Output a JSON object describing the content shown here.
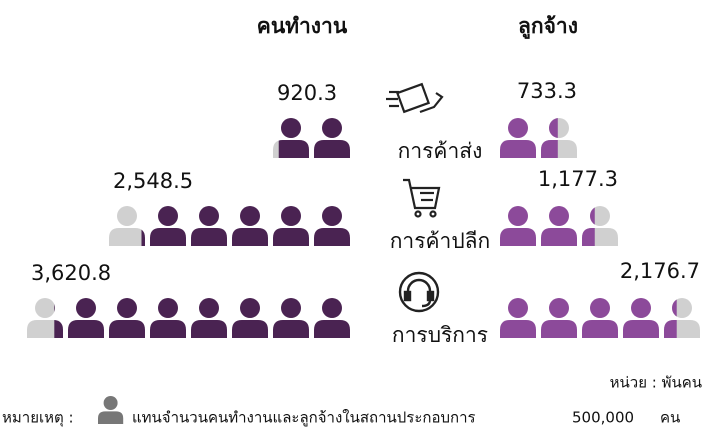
{
  "chart_data": {
    "type": "pictogram",
    "categories": [
      "การค้าส่ง",
      "การค้าปลีก",
      "การบริการ"
    ],
    "series": [
      {
        "name": "คนทำงาน",
        "color": "#4a2352",
        "values": [
          920.3,
          2548.5,
          3620.8
        ],
        "value_labels": [
          "920.3",
          "2,548.5",
          "3,620.8"
        ]
      },
      {
        "name": "ลูกจ้าง",
        "color": "#8c4a9a",
        "values": [
          733.3,
          1177.3,
          2176.7
        ],
        "value_labels": [
          "733.3",
          "1,177.3",
          "2,176.7"
        ]
      }
    ],
    "unit_label": "หน่วย : พันคน",
    "note_prefix": "หมายเหตุ :",
    "note_text": "แทนจำนวนคนทำงานและลูกจ้างในสถานประกอบการ",
    "icon_unit": {
      "value": 500000,
      "label": "500,000"
    },
    "note_suffix": "คน",
    "empty_color": "#d0d0d0"
  }
}
